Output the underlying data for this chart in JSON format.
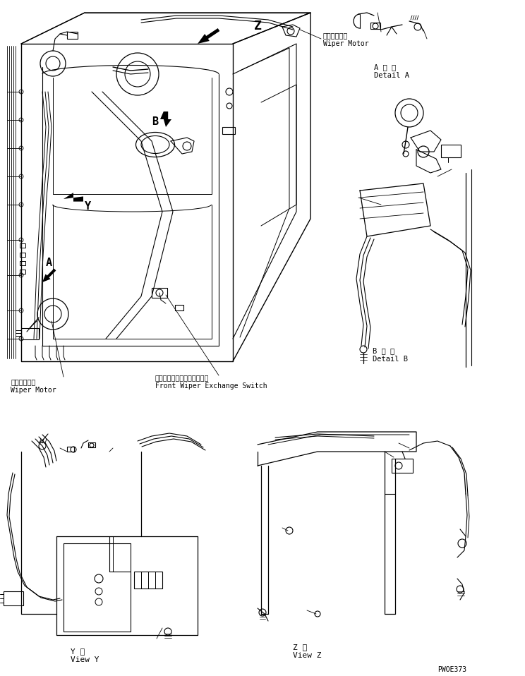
{
  "bg_color": "#ffffff",
  "lc": "#000000",
  "lw": 0.7,
  "fig_w": 7.44,
  "fig_h": 9.58,
  "dpi": 100,
  "texts": {
    "wiper_motor_jp": "ワイパモータ",
    "wiper_motor_en": "Wiper Motor",
    "front_wiper_jp": "フロントワイパ切換スイッチ",
    "front_wiper_en": "Front Wiper Exchange Switch",
    "detail_a_jp": "A 詳 細",
    "detail_a_en": "Detail A",
    "detail_b_jp": "B 詳 細",
    "detail_b_en": "Detail B",
    "view_y_jp": "Y 椄",
    "view_y_en": "View Y",
    "view_z_jp": "Z 椄",
    "view_z_en": "View Z",
    "part_num": "PWOE373",
    "lbl_z": "Z",
    "lbl_b": "B",
    "lbl_y": "Y",
    "lbl_a": "A"
  }
}
